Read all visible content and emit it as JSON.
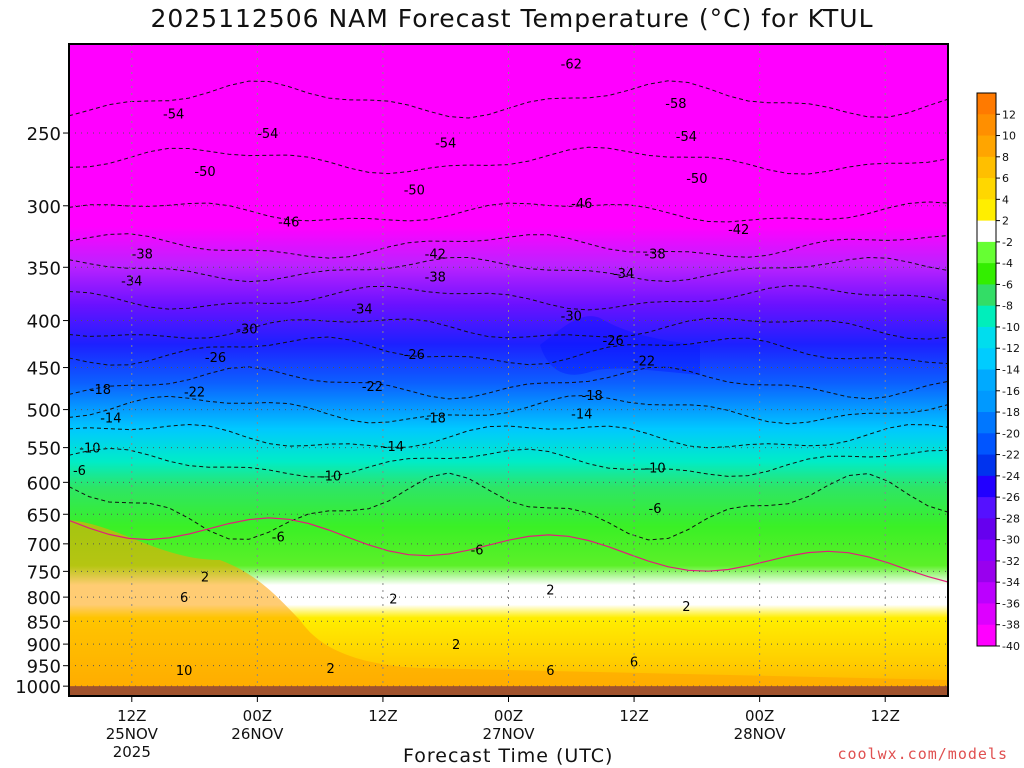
{
  "chart_data": {
    "type": "heatmap",
    "title": "2025112506 NAM Forecast Temperature (°C) for KTUL",
    "xlabel": "Forecast Time (UTC)",
    "ylabel": "",
    "credit": "coolwx.com/models",
    "x_ticks": [
      {
        "hours": 6,
        "lines": [
          "12Z",
          "25NOV",
          "2025"
        ]
      },
      {
        "hours": 18,
        "lines": [
          "00Z",
          "26NOV"
        ]
      },
      {
        "hours": 30,
        "lines": [
          "12Z"
        ]
      },
      {
        "hours": 42,
        "lines": [
          "00Z",
          "27NOV"
        ]
      },
      {
        "hours": 54,
        "lines": [
          "12Z"
        ]
      },
      {
        "hours": 66,
        "lines": [
          "00Z",
          "28NOV"
        ]
      },
      {
        "hours": 78,
        "lines": [
          "12Z"
        ]
      }
    ],
    "x_range_hours": [
      0,
      84
    ],
    "y_scale": "log",
    "y_ticks": [
      250,
      300,
      350,
      400,
      450,
      500,
      550,
      600,
      650,
      700,
      750,
      800,
      850,
      900,
      950,
      1000
    ],
    "y_range_hpa": [
      200,
      1025
    ],
    "colorbar_ticks": [
      12,
      10,
      8,
      6,
      4,
      2,
      -2,
      -4,
      -6,
      -8,
      -10,
      -12,
      -14,
      -16,
      -18,
      -20,
      -22,
      -24,
      -26,
      -28,
      -30,
      -32,
      -34,
      -36,
      -38,
      -40
    ],
    "colorbar_colors": [
      "#ff7a00",
      "#ff8f00",
      "#ffa500",
      "#ffbf00",
      "#ffd700",
      "#ffee00",
      "#ffffff",
      "#66ff33",
      "#33ee00",
      "#33dd66",
      "#00eebb",
      "#00ddee",
      "#00ccff",
      "#00aaff",
      "#0099ff",
      "#0077ff",
      "#0055ff",
      "#0033ee",
      "#2200ff",
      "#5511ff",
      "#6600ee",
      "#8800ff",
      "#9900ee",
      "#bb00ff",
      "#dd00ff",
      "#ff00ff"
    ],
    "ground_color": "#a0522d",
    "contour_labels": [
      {
        "text": "-62",
        "hours": 48,
        "p": 210
      },
      {
        "text": "-58",
        "hours": 58,
        "p": 232
      },
      {
        "text": "-54",
        "hours": 10,
        "p": 238
      },
      {
        "text": "-54",
        "hours": 19,
        "p": 250
      },
      {
        "text": "-54",
        "hours": 36,
        "p": 256
      },
      {
        "text": "-54",
        "hours": 59,
        "p": 252
      },
      {
        "text": "-50",
        "hours": 13,
        "p": 275
      },
      {
        "text": "-50",
        "hours": 33,
        "p": 288
      },
      {
        "text": "-50",
        "hours": 60,
        "p": 280
      },
      {
        "text": "-46",
        "hours": 21,
        "p": 312
      },
      {
        "text": "-46",
        "hours": 49,
        "p": 298
      },
      {
        "text": "-42",
        "hours": 35,
        "p": 338
      },
      {
        "text": "-42",
        "hours": 64,
        "p": 318
      },
      {
        "text": "-38",
        "hours": 7,
        "p": 338
      },
      {
        "text": "-38",
        "hours": 35,
        "p": 358
      },
      {
        "text": "-38",
        "hours": 56,
        "p": 338
      },
      {
        "text": "-34",
        "hours": 6,
        "p": 362
      },
      {
        "text": "-34",
        "hours": 28,
        "p": 388
      },
      {
        "text": "-34",
        "hours": 53,
        "p": 355
      },
      {
        "text": "-30",
        "hours": 17,
        "p": 408
      },
      {
        "text": "-30",
        "hours": 48,
        "p": 395
      },
      {
        "text": "-26",
        "hours": 14,
        "p": 438
      },
      {
        "text": "-26",
        "hours": 33,
        "p": 435
      },
      {
        "text": "-26",
        "hours": 52,
        "p": 420
      },
      {
        "text": "-22",
        "hours": 12,
        "p": 478
      },
      {
        "text": "-22",
        "hours": 29,
        "p": 471
      },
      {
        "text": "-22",
        "hours": 55,
        "p": 442
      },
      {
        "text": "-18",
        "hours": 3,
        "p": 475
      },
      {
        "text": "-18",
        "hours": 35,
        "p": 510
      },
      {
        "text": "-18",
        "hours": 50,
        "p": 482
      },
      {
        "text": "-14",
        "hours": 4,
        "p": 510
      },
      {
        "text": "-14",
        "hours": 31,
        "p": 548
      },
      {
        "text": "-14",
        "hours": 49,
        "p": 505
      },
      {
        "text": "-10",
        "hours": 2,
        "p": 550
      },
      {
        "text": "-10",
        "hours": 25,
        "p": 590
      },
      {
        "text": "-10",
        "hours": 56,
        "p": 578
      },
      {
        "text": "-6",
        "hours": 1,
        "p": 582
      },
      {
        "text": "-6",
        "hours": 20,
        "p": 687
      },
      {
        "text": "-6",
        "hours": 39,
        "p": 710
      },
      {
        "text": "-6",
        "hours": 56,
        "p": 640
      },
      {
        "text": "2",
        "hours": 13,
        "p": 760
      },
      {
        "text": "2",
        "hours": 31,
        "p": 803
      },
      {
        "text": "2",
        "hours": 46,
        "p": 785
      },
      {
        "text": "2",
        "hours": 59,
        "p": 818
      },
      {
        "text": "2",
        "hours": 37,
        "p": 900
      },
      {
        "text": "2",
        "hours": 25,
        "p": 955
      },
      {
        "text": "6",
        "hours": 11,
        "p": 800
      },
      {
        "text": "6",
        "hours": 46,
        "p": 960
      },
      {
        "text": "6",
        "hours": 54,
        "p": 940
      },
      {
        "text": "10",
        "hours": 11,
        "p": 960
      }
    ]
  }
}
